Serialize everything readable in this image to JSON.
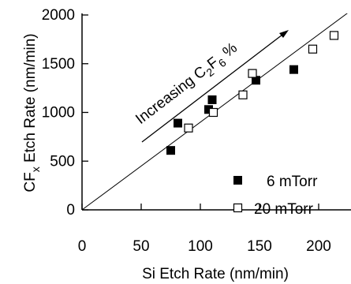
{
  "chart_data": {
    "type": "scatter",
    "xlabel": "Si Etch Rate (nm/min)",
    "ylabel_main": "CF",
    "ylabel_sub": "x",
    "ylabel_rest": " Etch Rate (nm/min)",
    "xlim": [
      0,
      220
    ],
    "ylim": [
      0,
      2000
    ],
    "x_ticks": [
      {
        "value": 0,
        "label": "0"
      },
      {
        "value": 50,
        "label": "50"
      },
      {
        "value": 100,
        "label": "100"
      },
      {
        "value": 150,
        "label": "150"
      },
      {
        "value": 200,
        "label": "200"
      }
    ],
    "y_ticks": [
      {
        "value": 0,
        "label": "0"
      },
      {
        "value": 500,
        "label": "500"
      },
      {
        "value": 1000,
        "label": "1000"
      },
      {
        "value": 1500,
        "label": "1500"
      },
      {
        "value": 2000,
        "label": "2000"
      }
    ],
    "reference_line": {
      "slope": 9.0
    },
    "annotation": {
      "text_main": "Increasing C",
      "sub1": "2",
      "mid": "F",
      "sub2": "6",
      "end": " %"
    },
    "series": [
      {
        "name": "6 mTorr",
        "marker": "filled-square",
        "color": "#000000",
        "points": [
          {
            "x": 75,
            "y": 610
          },
          {
            "x": 81,
            "y": 890
          },
          {
            "x": 107,
            "y": 1030
          },
          {
            "x": 110,
            "y": 1130
          },
          {
            "x": 147,
            "y": 1330
          },
          {
            "x": 179,
            "y": 1440
          }
        ]
      },
      {
        "name": "20 mTorr",
        "marker": "open-square",
        "color": "#000000",
        "points": [
          {
            "x": 90,
            "y": 840
          },
          {
            "x": 111,
            "y": 1000
          },
          {
            "x": 136,
            "y": 1180
          },
          {
            "x": 144,
            "y": 1400
          },
          {
            "x": 195,
            "y": 1650
          },
          {
            "x": 213,
            "y": 1790
          }
        ]
      }
    ]
  }
}
